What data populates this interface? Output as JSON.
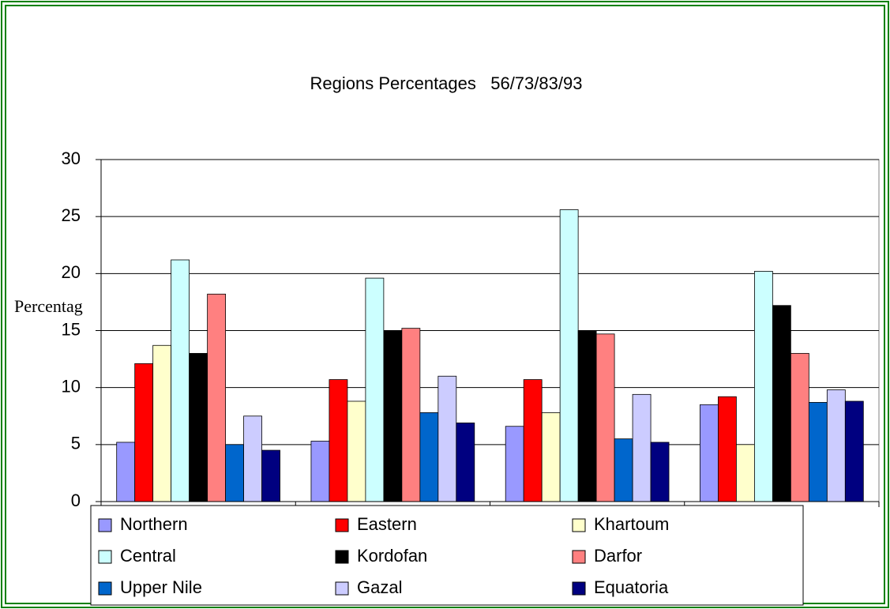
{
  "chart_data": {
    "type": "bar",
    "title": "Regions Percentages   56/73/83/93",
    "y_label": "Percentag",
    "categories": [
      null,
      null,
      null,
      null
    ],
    "series": [
      {
        "name": "Northern",
        "color": "#9999ff",
        "values": [
          5.2,
          5.3,
          6.6,
          8.5
        ]
      },
      {
        "name": "Eastern",
        "color": "#ff0000",
        "values": [
          12.1,
          10.7,
          10.7,
          9.2
        ]
      },
      {
        "name": "Khartoum",
        "color": "#ffffcc",
        "values": [
          13.7,
          8.8,
          7.8,
          5.0
        ]
      },
      {
        "name": "Central",
        "color": "#ccffff",
        "values": [
          21.2,
          19.6,
          25.6,
          20.2
        ]
      },
      {
        "name": "Kordofan",
        "color": "#000000",
        "values": [
          13.0,
          15.0,
          15.0,
          17.2
        ]
      },
      {
        "name": "Darfor",
        "color": "#ff8080",
        "values": [
          18.2,
          15.2,
          14.7,
          13.0
        ]
      },
      {
        "name": "Upper Nile",
        "color": "#0066cc",
        "values": [
          5.0,
          7.8,
          5.5,
          8.7
        ]
      },
      {
        "name": "Gazal",
        "color": "#ccccff",
        "values": [
          7.5,
          11.0,
          9.4,
          9.8
        ]
      },
      {
        "name": "Equatoria",
        "color": "#000080",
        "values": [
          4.5,
          6.9,
          5.2,
          8.8
        ]
      }
    ],
    "ylim": [
      0,
      30
    ],
    "yticks": [
      0,
      5,
      10,
      15,
      20,
      25,
      30
    ],
    "grid": true
  }
}
